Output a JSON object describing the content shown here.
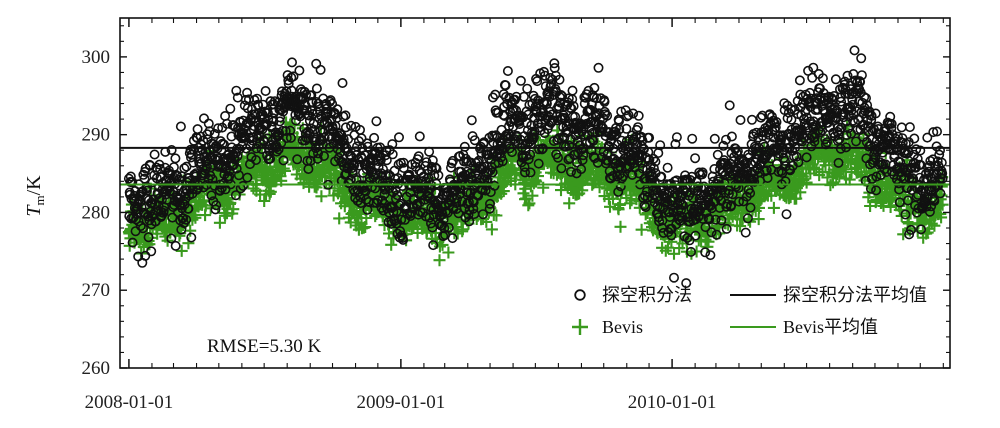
{
  "chart_data": {
    "type": "scatter",
    "ylabel": {
      "main": "T",
      "sub": "m",
      "unit": "/K"
    },
    "xlabel": "",
    "ylim": [
      260,
      305
    ],
    "yticks": [
      260,
      270,
      280,
      290,
      300
    ],
    "xticks": [
      "2008-01-01",
      "2009-01-01",
      "2010-01-01"
    ],
    "x_range": [
      "2007-12-20",
      "2011-01-10"
    ],
    "annotation": "RMSE=5.30 K",
    "legend_position": "bottom-right",
    "series": [
      {
        "name": "探空积分法",
        "marker": "open-circle",
        "color": "#111111",
        "annual_mean": 287.3,
        "seasonal_amplitude": 5.5,
        "x_start": "2008-01-01",
        "x_end": "2010-12-31"
      },
      {
        "name": "Bevis",
        "marker": "plus",
        "color": "#3a9a1e",
        "annual_mean": 283.0,
        "seasonal_amplitude": 3.8,
        "x_start": "2008-01-01",
        "x_end": "2010-12-31"
      }
    ],
    "reference_lines": [
      {
        "name": "探空积分法平均值",
        "y": 288.3,
        "color": "#111111"
      },
      {
        "name": "Bevis平均值",
        "y": 283.6,
        "color": "#3a9a1e"
      }
    ]
  }
}
